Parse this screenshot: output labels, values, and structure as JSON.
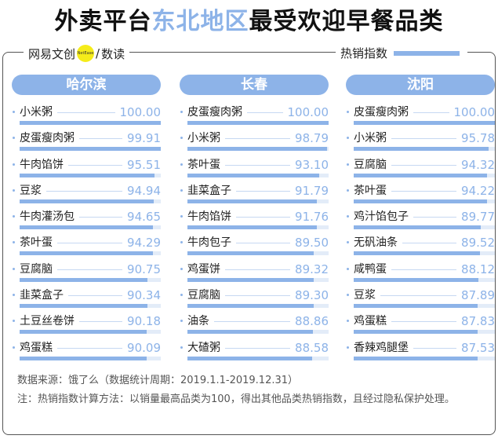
{
  "title": {
    "part1": "外卖平台",
    "highlight": "东北地区",
    "part2": "最受欢迎早餐品类"
  },
  "brand": {
    "name": "网易文创",
    "logo": "NetEase",
    "sep": "/",
    "sub": "数读"
  },
  "legend": {
    "label": "热销指数",
    "color": "#8db3e8"
  },
  "columns": [
    {
      "city": "哈尔滨",
      "items": [
        {
          "name": "小米粥",
          "value": "100.00"
        },
        {
          "name": "皮蛋瘦肉粥",
          "value": "99.91"
        },
        {
          "name": "牛肉馅饼",
          "value": "95.51"
        },
        {
          "name": "豆浆",
          "value": "94.94"
        },
        {
          "name": "牛肉灌汤包",
          "value": "94.65"
        },
        {
          "name": "茶叶蛋",
          "value": "94.29"
        },
        {
          "name": "豆腐脑",
          "value": "90.75"
        },
        {
          "name": "韭菜盒子",
          "value": "90.34"
        },
        {
          "name": "土豆丝卷饼",
          "value": "90.18"
        },
        {
          "name": "鸡蛋糕",
          "value": "90.09"
        }
      ]
    },
    {
      "city": "长春",
      "items": [
        {
          "name": "皮蛋瘦肉粥",
          "value": "100.00"
        },
        {
          "name": "小米粥",
          "value": "98.79"
        },
        {
          "name": "茶叶蛋",
          "value": "93.10"
        },
        {
          "name": "韭菜盒子",
          "value": "91.79"
        },
        {
          "name": "牛肉馅饼",
          "value": "91.76"
        },
        {
          "name": "牛肉包子",
          "value": "89.50"
        },
        {
          "name": "鸡蛋饼",
          "value": "89.32"
        },
        {
          "name": "豆腐脑",
          "value": "89.30"
        },
        {
          "name": "油条",
          "value": "88.86"
        },
        {
          "name": "大碴粥",
          "value": "88.58"
        }
      ]
    },
    {
      "city": "沈阳",
      "items": [
        {
          "name": "皮蛋瘦肉粥",
          "value": "100.00"
        },
        {
          "name": "小米粥",
          "value": "95.78"
        },
        {
          "name": "豆腐脑",
          "value": "94.32"
        },
        {
          "name": "茶叶蛋",
          "value": "94.22"
        },
        {
          "name": "鸡汁馅包子",
          "value": "89.77"
        },
        {
          "name": "无矾油条",
          "value": "89.52"
        },
        {
          "name": "咸鸭蛋",
          "value": "88.12"
        },
        {
          "name": "豆浆",
          "value": "87.89"
        },
        {
          "name": "鸡蛋糕",
          "value": "87.83"
        },
        {
          "name": "香辣鸡腿堡",
          "value": "87.53"
        }
      ]
    }
  ],
  "footer": {
    "source": "数据来源：饿了么（数据统计周期：2019.1.1-2019.12.31）",
    "note": "注：热销指数计算方法：以销量最高品类为100，得出其他品类热销指数，且经过隐私保护处理。"
  }
}
